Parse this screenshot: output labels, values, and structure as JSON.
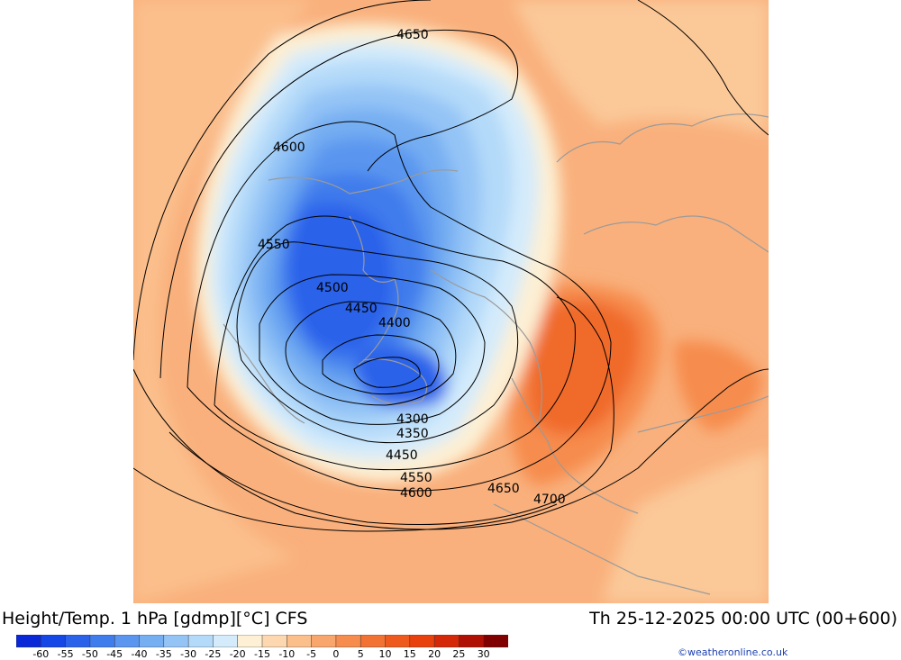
{
  "title": {
    "left": "Height/Temp. 1 hPa [gdmp][°C] CFS",
    "right": "Th 25-12-2025 00:00 UTC (00+600)"
  },
  "colorbar": {
    "labels": [
      "-60",
      "-55",
      "-50",
      "-45",
      "-40",
      "-35",
      "-30",
      "-25",
      "-20",
      "-15",
      "-10",
      "-5",
      "0",
      "5",
      "10",
      "15",
      "20",
      "25",
      "30"
    ],
    "colors": [
      "#0a28d8",
      "#1546e6",
      "#2a62ea",
      "#3f7cec",
      "#5a96ef",
      "#76aef2",
      "#94c4f6",
      "#b4daf9",
      "#d4ebfb",
      "#fdf0d4",
      "#fcd7b0",
      "#fbbf8c",
      "#f9a66c",
      "#f68c4e",
      "#f27234",
      "#ee5a1e",
      "#e8410e",
      "#d42808",
      "#b01004",
      "#800000"
    ],
    "colors_note": ""
  },
  "contours": {
    "labels": [
      "4650",
      "4600",
      "4550",
      "4500",
      "4450",
      "4400",
      "4300",
      "4350",
      "4450",
      "4550",
      "4600",
      "4650",
      "4700"
    ]
  },
  "credit": "©weatheronline.co.uk"
}
